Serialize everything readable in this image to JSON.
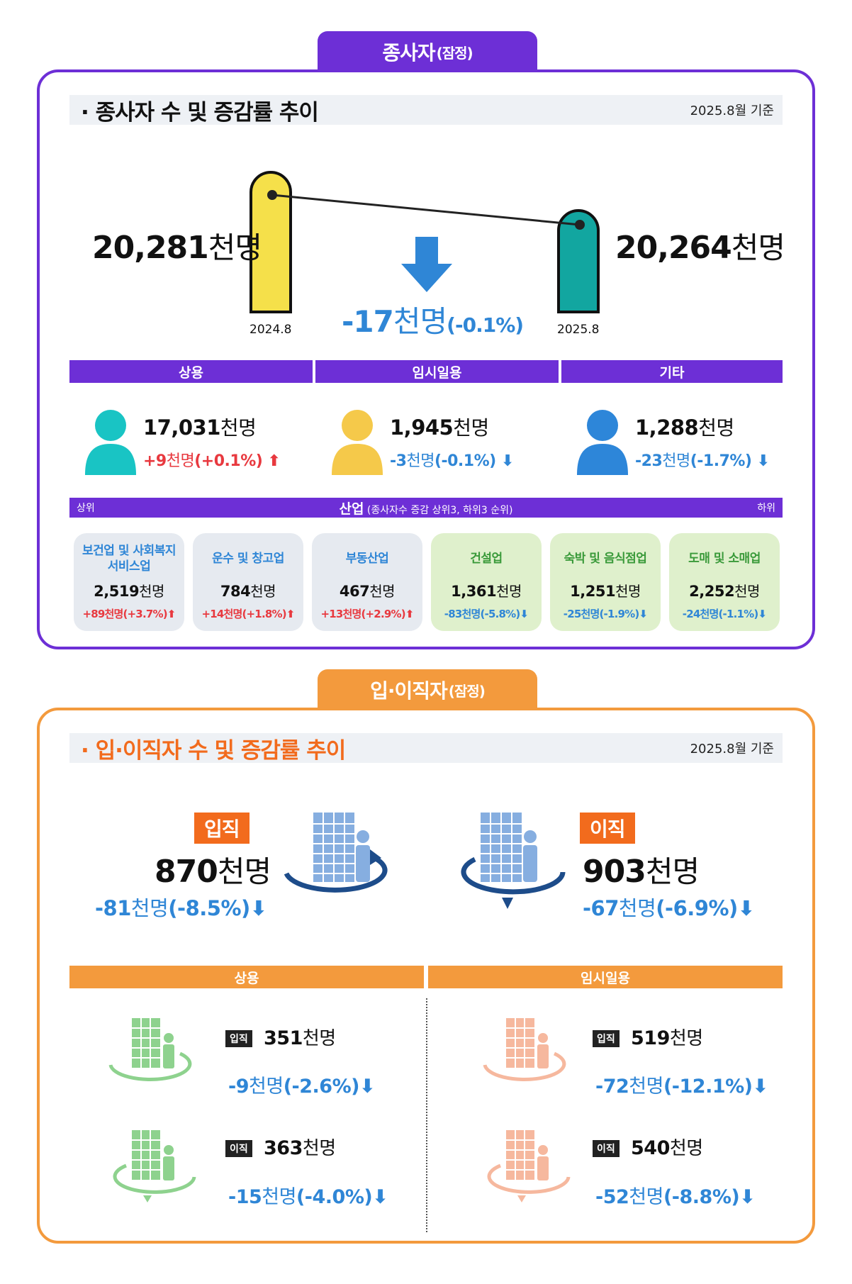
{
  "section1": {
    "tab": "종사자",
    "tab_suffix": "(잠정)",
    "title": "· 종사자 수 및 증감률 추이",
    "date": "2025.8월 기준",
    "left": {
      "value": "20,281",
      "unit": "천명",
      "year": "2024.8"
    },
    "right": {
      "value": "20,264",
      "unit": "천명",
      "year": "2025.8"
    },
    "change": {
      "value": "-17",
      "unit": "천명",
      "pct": "(-0.1%)"
    },
    "categories": [
      {
        "label": "상용",
        "value": "17,031",
        "unit": "천명",
        "chg": "+9",
        "chg_unit": "천명",
        "pct": "(+0.1%)",
        "color": "#19c4c4"
      },
      {
        "label": "임시일용",
        "value": "1,945",
        "unit": "천명",
        "chg": "-3",
        "chg_unit": "천명",
        "pct": "(-0.1%)",
        "color": "#f5c94a"
      },
      {
        "label": "기타",
        "value": "1,288",
        "unit": "천명",
        "chg": "-23",
        "chg_unit": "천명",
        "pct": "(-1.7%)",
        "color": "#2d86d9"
      }
    ],
    "industry_bar": {
      "left": "상위",
      "title": "산업",
      "sub": "(종사자수 증감 상위3, 하위3 순위)",
      "right": "하위"
    },
    "industries": [
      {
        "name": "보건업 및 사회복지 서비스업",
        "value": "2,519",
        "unit": "천명",
        "chg": "+89천명(+3.7%)"
      },
      {
        "name": "운수 및 창고업",
        "value": "784",
        "unit": "천명",
        "chg": "+14천명(+1.8%)"
      },
      {
        "name": "부동산업",
        "value": "467",
        "unit": "천명",
        "chg": "+13천명(+2.9%)"
      },
      {
        "name": "건설업",
        "value": "1,361",
        "unit": "천명",
        "chg": "-83천명(-5.8%)"
      },
      {
        "name": "숙박 및 음식점업",
        "value": "1,251",
        "unit": "천명",
        "chg": "-25천명(-1.9%)"
      },
      {
        "name": "도매 및 소매업",
        "value": "2,252",
        "unit": "천명",
        "chg": "-24천명(-1.1%)"
      }
    ]
  },
  "section2": {
    "tab": "입·이직자",
    "tab_suffix": "(잠정)",
    "title": "· 입·이직자 수 및 증감률 추이",
    "date": "2025.8월 기준",
    "hire": {
      "label": "입직",
      "value": "870",
      "unit": "천명",
      "chg": "-81",
      "chg_unit": "천명",
      "pct": "(-8.5%)"
    },
    "sep": {
      "label": "이직",
      "value": "903",
      "unit": "천명",
      "chg": "-67",
      "chg_unit": "천명",
      "pct": "(-6.9%)"
    },
    "regular": {
      "label": "상용",
      "hire": {
        "tag": "입직",
        "value": "351",
        "unit": "천명",
        "chg": "-9",
        "chg_unit": "천명",
        "pct": "(-2.6%)"
      },
      "sep": {
        "tag": "이직",
        "value": "363",
        "unit": "천명",
        "chg": "-15",
        "chg_unit": "천명",
        "pct": "(-4.0%)"
      }
    },
    "temporary": {
      "label": "임시일용",
      "hire": {
        "tag": "입직",
        "value": "519",
        "unit": "천명",
        "chg": "-72",
        "chg_unit": "천명",
        "pct": "(-12.1%)"
      },
      "sep": {
        "tag": "이직",
        "value": "540",
        "unit": "천명",
        "chg": "-52",
        "chg_unit": "천명",
        "pct": "(-8.8%)"
      }
    }
  },
  "colors": {
    "purple": "#6d2fd6",
    "orange": "#f39a3d",
    "deep_orange": "#f26b1d",
    "yellow": "#f5e04a",
    "teal": "#12a6a0",
    "red": "#e8393f",
    "blue": "#2f86d6"
  }
}
